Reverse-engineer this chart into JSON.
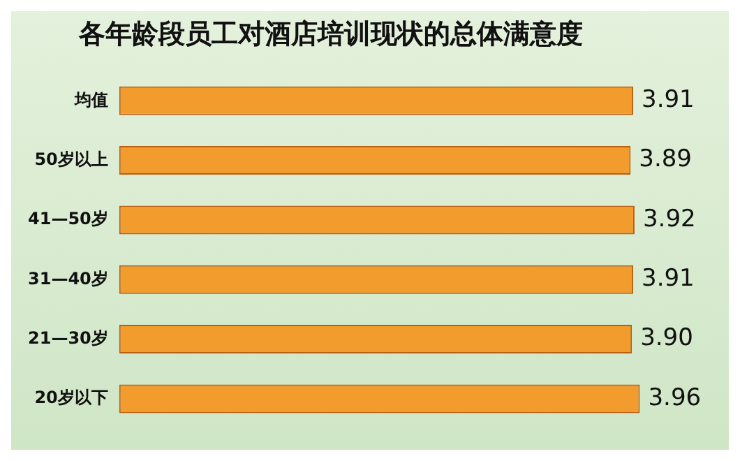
{
  "chart_data": {
    "type": "bar",
    "orientation": "horizontal",
    "title": "各年龄段员工对酒店培训现状的总体满意度",
    "categories": [
      "均值",
      "50岁以上",
      "41—50岁",
      "31—40岁",
      "21—30岁",
      "20岁以下"
    ],
    "values": [
      3.91,
      3.89,
      3.92,
      3.91,
      3.9,
      3.96
    ],
    "value_labels": [
      "3.91",
      "3.89",
      "3.92",
      "3.91",
      "3.90",
      "3.96"
    ],
    "color": "#f39c2e",
    "tick_labels": "y",
    "grid": false,
    "legend": false
  }
}
